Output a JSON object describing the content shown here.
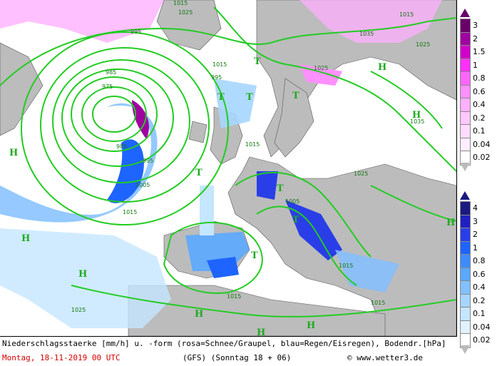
{
  "map": {
    "isobar_labels": [
      "995",
      "985",
      "975",
      "985",
      "995",
      "1005",
      "1015",
      "1025",
      "1015",
      "1015",
      "1035",
      "1015",
      "1025",
      "1015",
      "1025",
      "1015",
      "1025",
      "1005",
      "995",
      "1015",
      "1015",
      "1025",
      "1015",
      "1025",
      "1035",
      "1015"
    ],
    "pressure_letters_high": [
      "H",
      "H",
      "H",
      "H",
      "H",
      "H",
      "H",
      "H",
      "H"
    ],
    "pressure_letters_low": [
      "T",
      "T",
      "T",
      "T",
      "T",
      "T",
      "T",
      "T",
      "T"
    ]
  },
  "legend_snow": {
    "labels": [
      "3",
      "2",
      "1.5",
      "1",
      "0.8",
      "0.6",
      "0.4",
      "0.2",
      "0.1",
      "0.04",
      "0.02"
    ],
    "colors": [
      "#6a006a",
      "#a000a0",
      "#d000c8",
      "#ff30ff",
      "#ff66ff",
      "#ff90ff",
      "#ffb0ff",
      "#ffc8ff",
      "#ffdcff",
      "#ffeeff",
      "#ffffff"
    ]
  },
  "legend_rain": {
    "labels": [
      "4",
      "3",
      "2",
      "1",
      "0.8",
      "0.6",
      "0.4",
      "0.2",
      "0.1",
      "0.04",
      "0.02"
    ],
    "colors": [
      "#1a1a80",
      "#2020c0",
      "#2a3ee8",
      "#1e64ff",
      "#3c8cff",
      "#5aa8ff",
      "#82c0ff",
      "#a6d6ff",
      "#c4e6ff",
      "#e0f2ff",
      "#ffffff"
    ]
  },
  "footer": {
    "line1": "Niederschlagsstaerke [mm/h] u. -form (rosa=Schnee/Graupel, blau=Regen/Eisregen), Bodendr.[hPa]",
    "date": "Montag, 18-11-2019  00 UTC",
    "model": "(GFS)  (Sonntag 18 + 06)",
    "copyright": "© www.wetter3.de"
  },
  "colors": {
    "land": "#bcbcbc",
    "sea": "#ffffff",
    "isobar": "#22cc22",
    "date_text": "#d40000"
  }
}
